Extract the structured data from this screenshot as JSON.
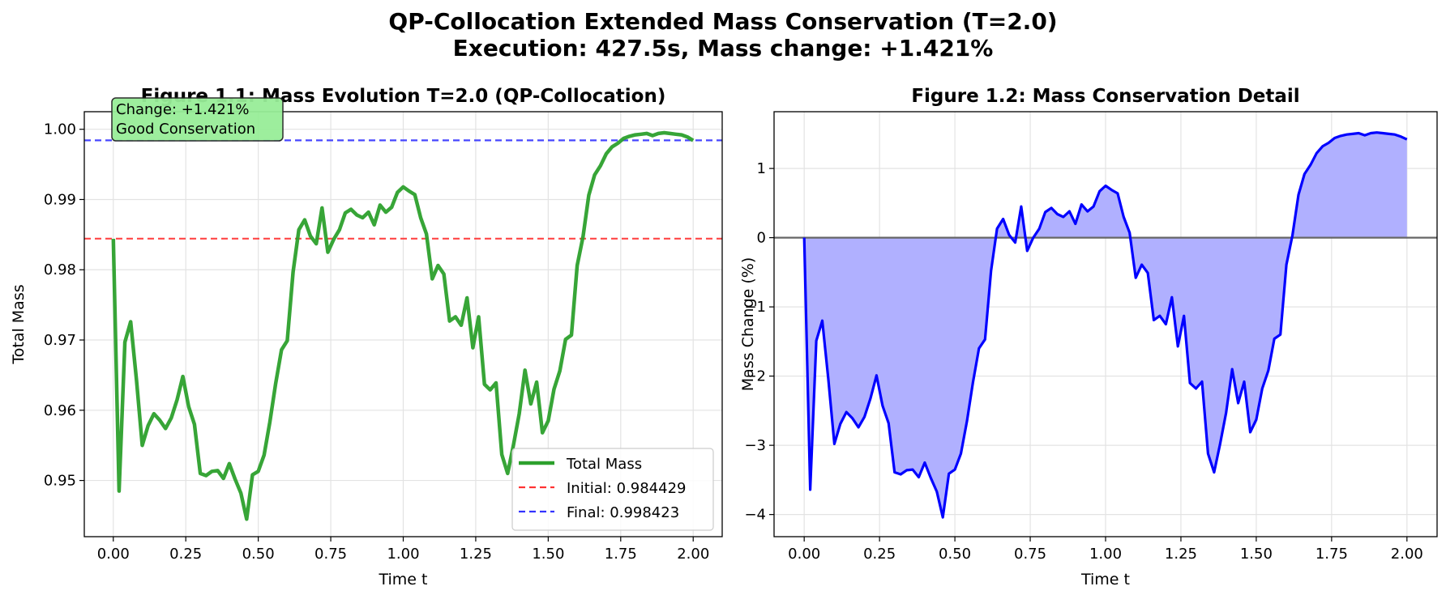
{
  "figure": {
    "title_line1": "QP-Collocation Extended Mass Conservation (T=2.0)",
    "title_line2": "Execution: 427.5s, Mass change: +1.421%"
  },
  "chart_data": [
    {
      "type": "line",
      "title": "Figure 1.1: Mass Evolution T=2.0 (QP-Collocation)",
      "xlabel": "Time t",
      "ylabel": "Total Mass",
      "xlim": [
        -0.1,
        2.1
      ],
      "ylim": [
        0.942,
        1.0025
      ],
      "xticks": [
        0.0,
        0.25,
        0.5,
        0.75,
        1.0,
        1.25,
        1.5,
        1.75,
        2.0
      ],
      "xtick_labels": [
        "0.00",
        "0.25",
        "0.50",
        "0.75",
        "1.00",
        "1.25",
        "1.50",
        "1.75",
        "2.00"
      ],
      "yticks": [
        0.95,
        0.96,
        0.97,
        0.98,
        0.99,
        1.0
      ],
      "ytick_labels": [
        "0.95",
        "0.96",
        "0.97",
        "0.98",
        "0.99",
        "1.00"
      ],
      "grid": true,
      "series": [
        {
          "name": "Total Mass",
          "color": "#2ca02c",
          "x": [
            0.0,
            0.02,
            0.04,
            0.06,
            0.08,
            0.1,
            0.12,
            0.14,
            0.16,
            0.18,
            0.2,
            0.22,
            0.24,
            0.26,
            0.28,
            0.3,
            0.32,
            0.34,
            0.36,
            0.38,
            0.4,
            0.42,
            0.44,
            0.46,
            0.48,
            0.5,
            0.52,
            0.54,
            0.56,
            0.58,
            0.6,
            0.62,
            0.64,
            0.66,
            0.68,
            0.7,
            0.72,
            0.74,
            0.76,
            0.78,
            0.8,
            0.82,
            0.84,
            0.86,
            0.88,
            0.9,
            0.92,
            0.94,
            0.96,
            0.98,
            1.0,
            1.02,
            1.04,
            1.06,
            1.08,
            1.1,
            1.12,
            1.14,
            1.16,
            1.18,
            1.2,
            1.22,
            1.24,
            1.26,
            1.28,
            1.3,
            1.32,
            1.34,
            1.36,
            1.38,
            1.4,
            1.42,
            1.44,
            1.46,
            1.48,
            1.5,
            1.52,
            1.54,
            1.56,
            1.58,
            1.6,
            1.62,
            1.64,
            1.66,
            1.68,
            1.7,
            1.72,
            1.74,
            1.76,
            1.78,
            1.8,
            1.82,
            1.84,
            1.86,
            1.88,
            1.9,
            1.92,
            1.94,
            1.96,
            1.98,
            2.0
          ],
          "y": [
            0.9844,
            0.9485,
            0.9697,
            0.9726,
            0.9643,
            0.955,
            0.9578,
            0.9595,
            0.9586,
            0.9574,
            0.9589,
            0.9615,
            0.9648,
            0.9605,
            0.958,
            0.951,
            0.9507,
            0.9513,
            0.9514,
            0.9503,
            0.9524,
            0.9502,
            0.9482,
            0.9445,
            0.9508,
            0.9513,
            0.9536,
            0.9583,
            0.9638,
            0.9686,
            0.9699,
            0.9797,
            0.9857,
            0.9871,
            0.9848,
            0.9837,
            0.9888,
            0.9825,
            0.9843,
            0.9857,
            0.9881,
            0.9886,
            0.9878,
            0.9874,
            0.9882,
            0.9864,
            0.9892,
            0.9882,
            0.9889,
            0.991,
            0.9918,
            0.9912,
            0.9907,
            0.9874,
            0.9851,
            0.9787,
            0.9806,
            0.9794,
            0.9727,
            0.9733,
            0.9721,
            0.976,
            0.9689,
            0.9733,
            0.9637,
            0.9629,
            0.9639,
            0.9537,
            0.951,
            0.955,
            0.9595,
            0.9657,
            0.9609,
            0.964,
            0.9568,
            0.9585,
            0.963,
            0.9656,
            0.9701,
            0.9707,
            0.9806,
            0.9847,
            0.9906,
            0.9935,
            0.9948,
            0.9965,
            0.9975,
            0.998,
            0.9987,
            0.999,
            0.9992,
            0.9993,
            0.9994,
            0.9991,
            0.9994,
            0.9995,
            0.9994,
            0.9993,
            0.9992,
            0.9989,
            0.9984
          ]
        }
      ],
      "hlines": [
        {
          "name": "Initial: 0.984429",
          "value": 0.984429,
          "color": "#ff3333"
        },
        {
          "name": "Final: 0.998423",
          "value": 0.998423,
          "color": "#3333ff"
        }
      ],
      "legend_location": "lower-right",
      "annotation": {
        "line1": "Change: +1.421%",
        "line2": "Good Conservation",
        "background": "#98ee98",
        "location": "top-left"
      }
    },
    {
      "type": "area",
      "title": "Figure 1.2: Mass Conservation Detail",
      "xlabel": "Time t",
      "ylabel": "Mass Change (%)",
      "xlim": [
        -0.1,
        2.1
      ],
      "ylim": [
        -4.32,
        1.82
      ],
      "xticks": [
        0.0,
        0.25,
        0.5,
        0.75,
        1.0,
        1.25,
        1.5,
        1.75,
        2.0
      ],
      "xtick_labels": [
        "0.00",
        "0.25",
        "0.50",
        "0.75",
        "1.00",
        "1.25",
        "1.50",
        "1.75",
        "2.00"
      ],
      "yticks": [
        -4,
        -3,
        -2,
        -1,
        0,
        1
      ],
      "ytick_labels": [
        "−4",
        "−3",
        "−2",
        "−1",
        "0",
        "1"
      ],
      "grid": true,
      "line_color": "#0000ff",
      "fill_color": "#b0b0ff",
      "zero_line_color": "#666666",
      "series": [
        {
          "x": [
            0.0,
            0.02,
            0.04,
            0.06,
            0.08,
            0.1,
            0.12,
            0.14,
            0.16,
            0.18,
            0.2,
            0.22,
            0.24,
            0.26,
            0.28,
            0.3,
            0.32,
            0.34,
            0.36,
            0.38,
            0.4,
            0.42,
            0.44,
            0.46,
            0.48,
            0.5,
            0.52,
            0.54,
            0.56,
            0.58,
            0.6,
            0.62,
            0.64,
            0.66,
            0.68,
            0.7,
            0.72,
            0.74,
            0.76,
            0.78,
            0.8,
            0.82,
            0.84,
            0.86,
            0.88,
            0.9,
            0.92,
            0.94,
            0.96,
            0.98,
            1.0,
            1.02,
            1.04,
            1.06,
            1.08,
            1.1,
            1.12,
            1.14,
            1.16,
            1.18,
            1.2,
            1.22,
            1.24,
            1.26,
            1.28,
            1.3,
            1.32,
            1.34,
            1.36,
            1.38,
            1.4,
            1.42,
            1.44,
            1.46,
            1.48,
            1.5,
            1.52,
            1.54,
            1.56,
            1.58,
            1.6,
            1.62,
            1.64,
            1.66,
            1.68,
            1.7,
            1.72,
            1.74,
            1.76,
            1.78,
            1.8,
            1.82,
            1.84,
            1.86,
            1.88,
            1.9,
            1.92,
            1.94,
            1.96,
            1.98,
            2.0
          ],
          "y": [
            0.0,
            -3.64,
            -1.49,
            -1.2,
            -2.04,
            -2.98,
            -2.69,
            -2.52,
            -2.61,
            -2.74,
            -2.59,
            -2.32,
            -1.99,
            -2.43,
            -2.68,
            -3.39,
            -3.42,
            -3.36,
            -3.35,
            -3.46,
            -3.25,
            -3.47,
            -3.67,
            -4.04,
            -3.41,
            -3.35,
            -3.12,
            -2.65,
            -2.09,
            -1.6,
            -1.47,
            -0.48,
            0.13,
            0.27,
            0.04,
            -0.07,
            0.45,
            -0.19,
            0.0,
            0.13,
            0.37,
            0.43,
            0.34,
            0.3,
            0.38,
            0.2,
            0.48,
            0.38,
            0.45,
            0.67,
            0.75,
            0.69,
            0.64,
            0.3,
            0.07,
            -0.58,
            -0.39,
            -0.51,
            -1.19,
            -1.13,
            -1.25,
            -0.86,
            -1.57,
            -1.13,
            -2.1,
            -2.18,
            -2.08,
            -3.12,
            -3.39,
            -2.98,
            -2.53,
            -1.9,
            -2.39,
            -2.08,
            -2.81,
            -2.63,
            -2.18,
            -1.92,
            -1.46,
            -1.4,
            -0.39,
            0.03,
            0.62,
            0.92,
            1.05,
            1.22,
            1.32,
            1.37,
            1.44,
            1.47,
            1.49,
            1.5,
            1.51,
            1.48,
            1.51,
            1.52,
            1.51,
            1.5,
            1.49,
            1.46,
            1.42
          ]
        }
      ]
    }
  ]
}
